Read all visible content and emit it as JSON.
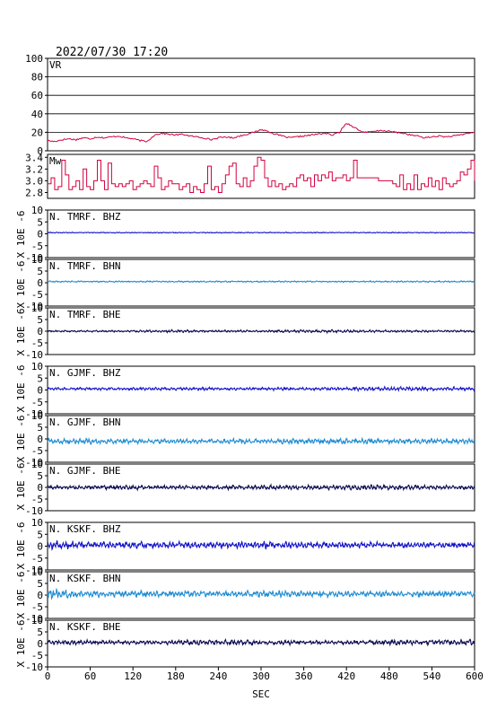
{
  "header": {
    "timestamp": "2022/07/30 17:20"
  },
  "x_axis": {
    "label": "SEC",
    "range": [
      0,
      600
    ],
    "ticks": [
      "0",
      "60",
      "120",
      "180",
      "240",
      "300",
      "360",
      "420",
      "480",
      "540",
      "600"
    ]
  },
  "y_axis_label": "X 10E -6",
  "chart_data": [
    {
      "type": "line",
      "label": "VR",
      "ylim": [
        0,
        100
      ],
      "yticks": [
        "0",
        "20",
        "40",
        "60",
        "80",
        "100"
      ],
      "grid": true,
      "color": "#d3003f",
      "x": [
        0,
        10,
        20,
        30,
        40,
        50,
        60,
        70,
        80,
        90,
        100,
        110,
        120,
        130,
        140,
        150,
        160,
        170,
        180,
        190,
        200,
        210,
        220,
        230,
        240,
        250,
        260,
        270,
        280,
        290,
        300,
        310,
        320,
        330,
        340,
        350,
        360,
        370,
        380,
        390,
        400,
        410,
        420,
        430,
        440,
        450,
        460,
        470,
        480,
        490,
        500,
        510,
        520,
        530,
        540,
        550,
        560,
        570,
        580,
        590,
        600
      ],
      "y": [
        11,
        10,
        12,
        13,
        12,
        14,
        13,
        15,
        14,
        15,
        16,
        14,
        13,
        11,
        10,
        17,
        19,
        18,
        17,
        18,
        16,
        15,
        14,
        12,
        14,
        15,
        14,
        16,
        18,
        20,
        23,
        21,
        18,
        16,
        14,
        15,
        16,
        17,
        18,
        19,
        17,
        20,
        30,
        26,
        21,
        20,
        21,
        22,
        21,
        20,
        19,
        17,
        16,
        14,
        15,
        16,
        15,
        16,
        17,
        19,
        20
      ]
    },
    {
      "type": "line",
      "label": "Mw",
      "ylim": [
        2.7,
        3.45
      ],
      "yticks": [
        "2.8",
        "3.0",
        "3.2",
        "3.4"
      ],
      "grid": false,
      "color": "#d3003f",
      "x": [
        0,
        5,
        10,
        15,
        20,
        25,
        30,
        35,
        40,
        45,
        50,
        55,
        60,
        65,
        70,
        75,
        80,
        85,
        90,
        95,
        100,
        105,
        110,
        115,
        120,
        125,
        130,
        135,
        140,
        145,
        150,
        155,
        160,
        165,
        170,
        175,
        180,
        185,
        190,
        195,
        200,
        205,
        210,
        215,
        220,
        225,
        230,
        235,
        240,
        245,
        250,
        255,
        260,
        265,
        270,
        275,
        280,
        285,
        290,
        295,
        300,
        305,
        310,
        315,
        320,
        325,
        330,
        335,
        340,
        345,
        350,
        355,
        360,
        365,
        370,
        375,
        380,
        385,
        390,
        395,
        400,
        405,
        410,
        415,
        420,
        425,
        430,
        435,
        440,
        445,
        450,
        455,
        460,
        465,
        470,
        475,
        480,
        485,
        490,
        495,
        500,
        505,
        510,
        515,
        520,
        525,
        530,
        535,
        540,
        545,
        550,
        555,
        560,
        565,
        570,
        575,
        580,
        585,
        590,
        595,
        600
      ],
      "y": [
        2.95,
        3.05,
        2.85,
        2.9,
        3.35,
        3.1,
        2.85,
        2.9,
        3.0,
        2.85,
        3.2,
        2.9,
        2.85,
        3.0,
        3.35,
        3.0,
        2.85,
        3.3,
        2.95,
        2.9,
        2.95,
        2.9,
        2.95,
        3.0,
        2.85,
        2.9,
        2.95,
        3.0,
        2.95,
        2.9,
        3.25,
        3.05,
        2.85,
        2.9,
        3.0,
        2.95,
        2.95,
        2.85,
        2.9,
        2.95,
        2.8,
        2.9,
        2.85,
        2.8,
        2.95,
        3.25,
        2.85,
        2.9,
        2.8,
        2.95,
        3.1,
        3.25,
        3.3,
        2.95,
        2.9,
        3.05,
        2.9,
        3.0,
        3.25,
        3.4,
        3.35,
        3.05,
        2.9,
        3.0,
        2.9,
        2.95,
        2.85,
        2.9,
        2.95,
        2.9,
        3.05,
        3.1,
        3.0,
        3.05,
        2.9,
        3.1,
        3.0,
        3.1,
        3.05,
        3.15,
        3.0,
        3.05,
        3.05,
        3.1,
        3.0,
        3.05,
        3.35,
        3.05,
        3.05,
        3.05,
        3.05,
        3.05,
        3.05,
        3.0,
        3.0,
        3.0,
        3.0,
        2.95,
        2.9,
        3.1,
        2.85,
        2.95,
        2.85,
        3.1,
        2.85,
        2.95,
        2.9,
        3.05,
        2.9,
        3.0,
        2.85,
        3.05,
        2.95,
        2.9,
        2.95,
        3.0,
        3.15,
        3.1,
        3.2,
        3.35,
        3.0
      ]
    },
    {
      "type": "line",
      "label": "N. TMRF. BHZ",
      "ylim": [
        -10,
        10
      ],
      "yticks": [
        "-10",
        "-5",
        "0",
        "5",
        "10"
      ],
      "color": "#1414c8",
      "baseline": 0.5,
      "amplitude_envelope": [
        0.2,
        0.2,
        0.2,
        0.2,
        0.2,
        0.2,
        0.2,
        0.2,
        0.2,
        0.2,
        0.2
      ]
    },
    {
      "type": "line",
      "label": "N. TMRF. BHN",
      "ylim": [
        -10,
        10
      ],
      "yticks": [
        "-10",
        "-5",
        "0",
        "5",
        "10"
      ],
      "color": "#1e8cd2",
      "baseline": 0.5,
      "amplitude_envelope": [
        0.3,
        0.3,
        0.3,
        0.3,
        0.3,
        0.3,
        0.3,
        0.3,
        0.3,
        0.3,
        0.3
      ]
    },
    {
      "type": "line",
      "label": "N. TMRF. BHE",
      "ylim": [
        -10,
        10
      ],
      "yticks": [
        "-10",
        "-5",
        "0",
        "5",
        "10"
      ],
      "color": "#0a0a50",
      "baseline": 0.0,
      "amplitude_envelope": [
        0.4,
        0.4,
        0.4,
        0.6,
        0.5,
        0.5,
        0.6,
        0.6,
        0.5,
        0.5,
        0.5
      ]
    },
    {
      "type": "line",
      "label": "N. GJMF. BHZ",
      "ylim": [
        -10,
        10
      ],
      "yticks": [
        "-10",
        "-5",
        "0",
        "5",
        "10"
      ],
      "color": "#1414c8",
      "baseline": 0.5,
      "amplitude_envelope": [
        0.5,
        0.6,
        0.6,
        0.7,
        0.6,
        0.7,
        0.7,
        0.7,
        0.9,
        0.8,
        0.8
      ]
    },
    {
      "type": "line",
      "label": "N. GJMF. BHN",
      "ylim": [
        -10,
        10
      ],
      "yticks": [
        "-10",
        "-5",
        "0",
        "5",
        "10"
      ],
      "color": "#1e8cd2",
      "baseline": -1.0,
      "amplitude_envelope": [
        1.2,
        1.3,
        1.0,
        1.0,
        1.1,
        1.1,
        1.2,
        1.2,
        1.0,
        1.1,
        1.0
      ]
    },
    {
      "type": "line",
      "label": "N. GJMF. BHE",
      "ylim": [
        -10,
        10
      ],
      "yticks": [
        "-10",
        "-5",
        "0",
        "5",
        "10"
      ],
      "color": "#0a0a50",
      "baseline": 0.0,
      "amplitude_envelope": [
        0.8,
        0.8,
        1.0,
        0.9,
        0.9,
        1.0,
        1.0,
        1.1,
        1.2,
        1.0,
        0.9
      ]
    },
    {
      "type": "line",
      "label": "N. KSKF. BHZ",
      "ylim": [
        -10,
        10
      ],
      "yticks": [
        "-10",
        "-5",
        "0",
        "5",
        "10"
      ],
      "color": "#1414c8",
      "baseline": 0.5,
      "amplitude_envelope": [
        2.0,
        1.3,
        1.4,
        1.3,
        1.2,
        1.8,
        1.3,
        1.3,
        1.2,
        1.2,
        1.0
      ]
    },
    {
      "type": "line",
      "label": "N. KSKF. BHN",
      "ylim": [
        -10,
        10
      ],
      "yticks": [
        "-10",
        "-5",
        "0",
        "5",
        "10"
      ],
      "color": "#1e8cd2",
      "baseline": 0.5,
      "amplitude_envelope": [
        2.2,
        1.3,
        1.3,
        1.5,
        1.2,
        1.4,
        1.4,
        1.3,
        1.3,
        1.3,
        1.2
      ]
    },
    {
      "type": "line",
      "label": "N. KSKF. BHE",
      "ylim": [
        -10,
        10
      ],
      "yticks": [
        "-10",
        "-5",
        "0",
        "5",
        "10"
      ],
      "color": "#0a0a50",
      "baseline": 0.5,
      "amplitude_envelope": [
        1.0,
        1.0,
        0.8,
        1.0,
        1.2,
        1.0,
        1.0,
        1.0,
        1.1,
        1.1,
        1.2
      ]
    }
  ]
}
